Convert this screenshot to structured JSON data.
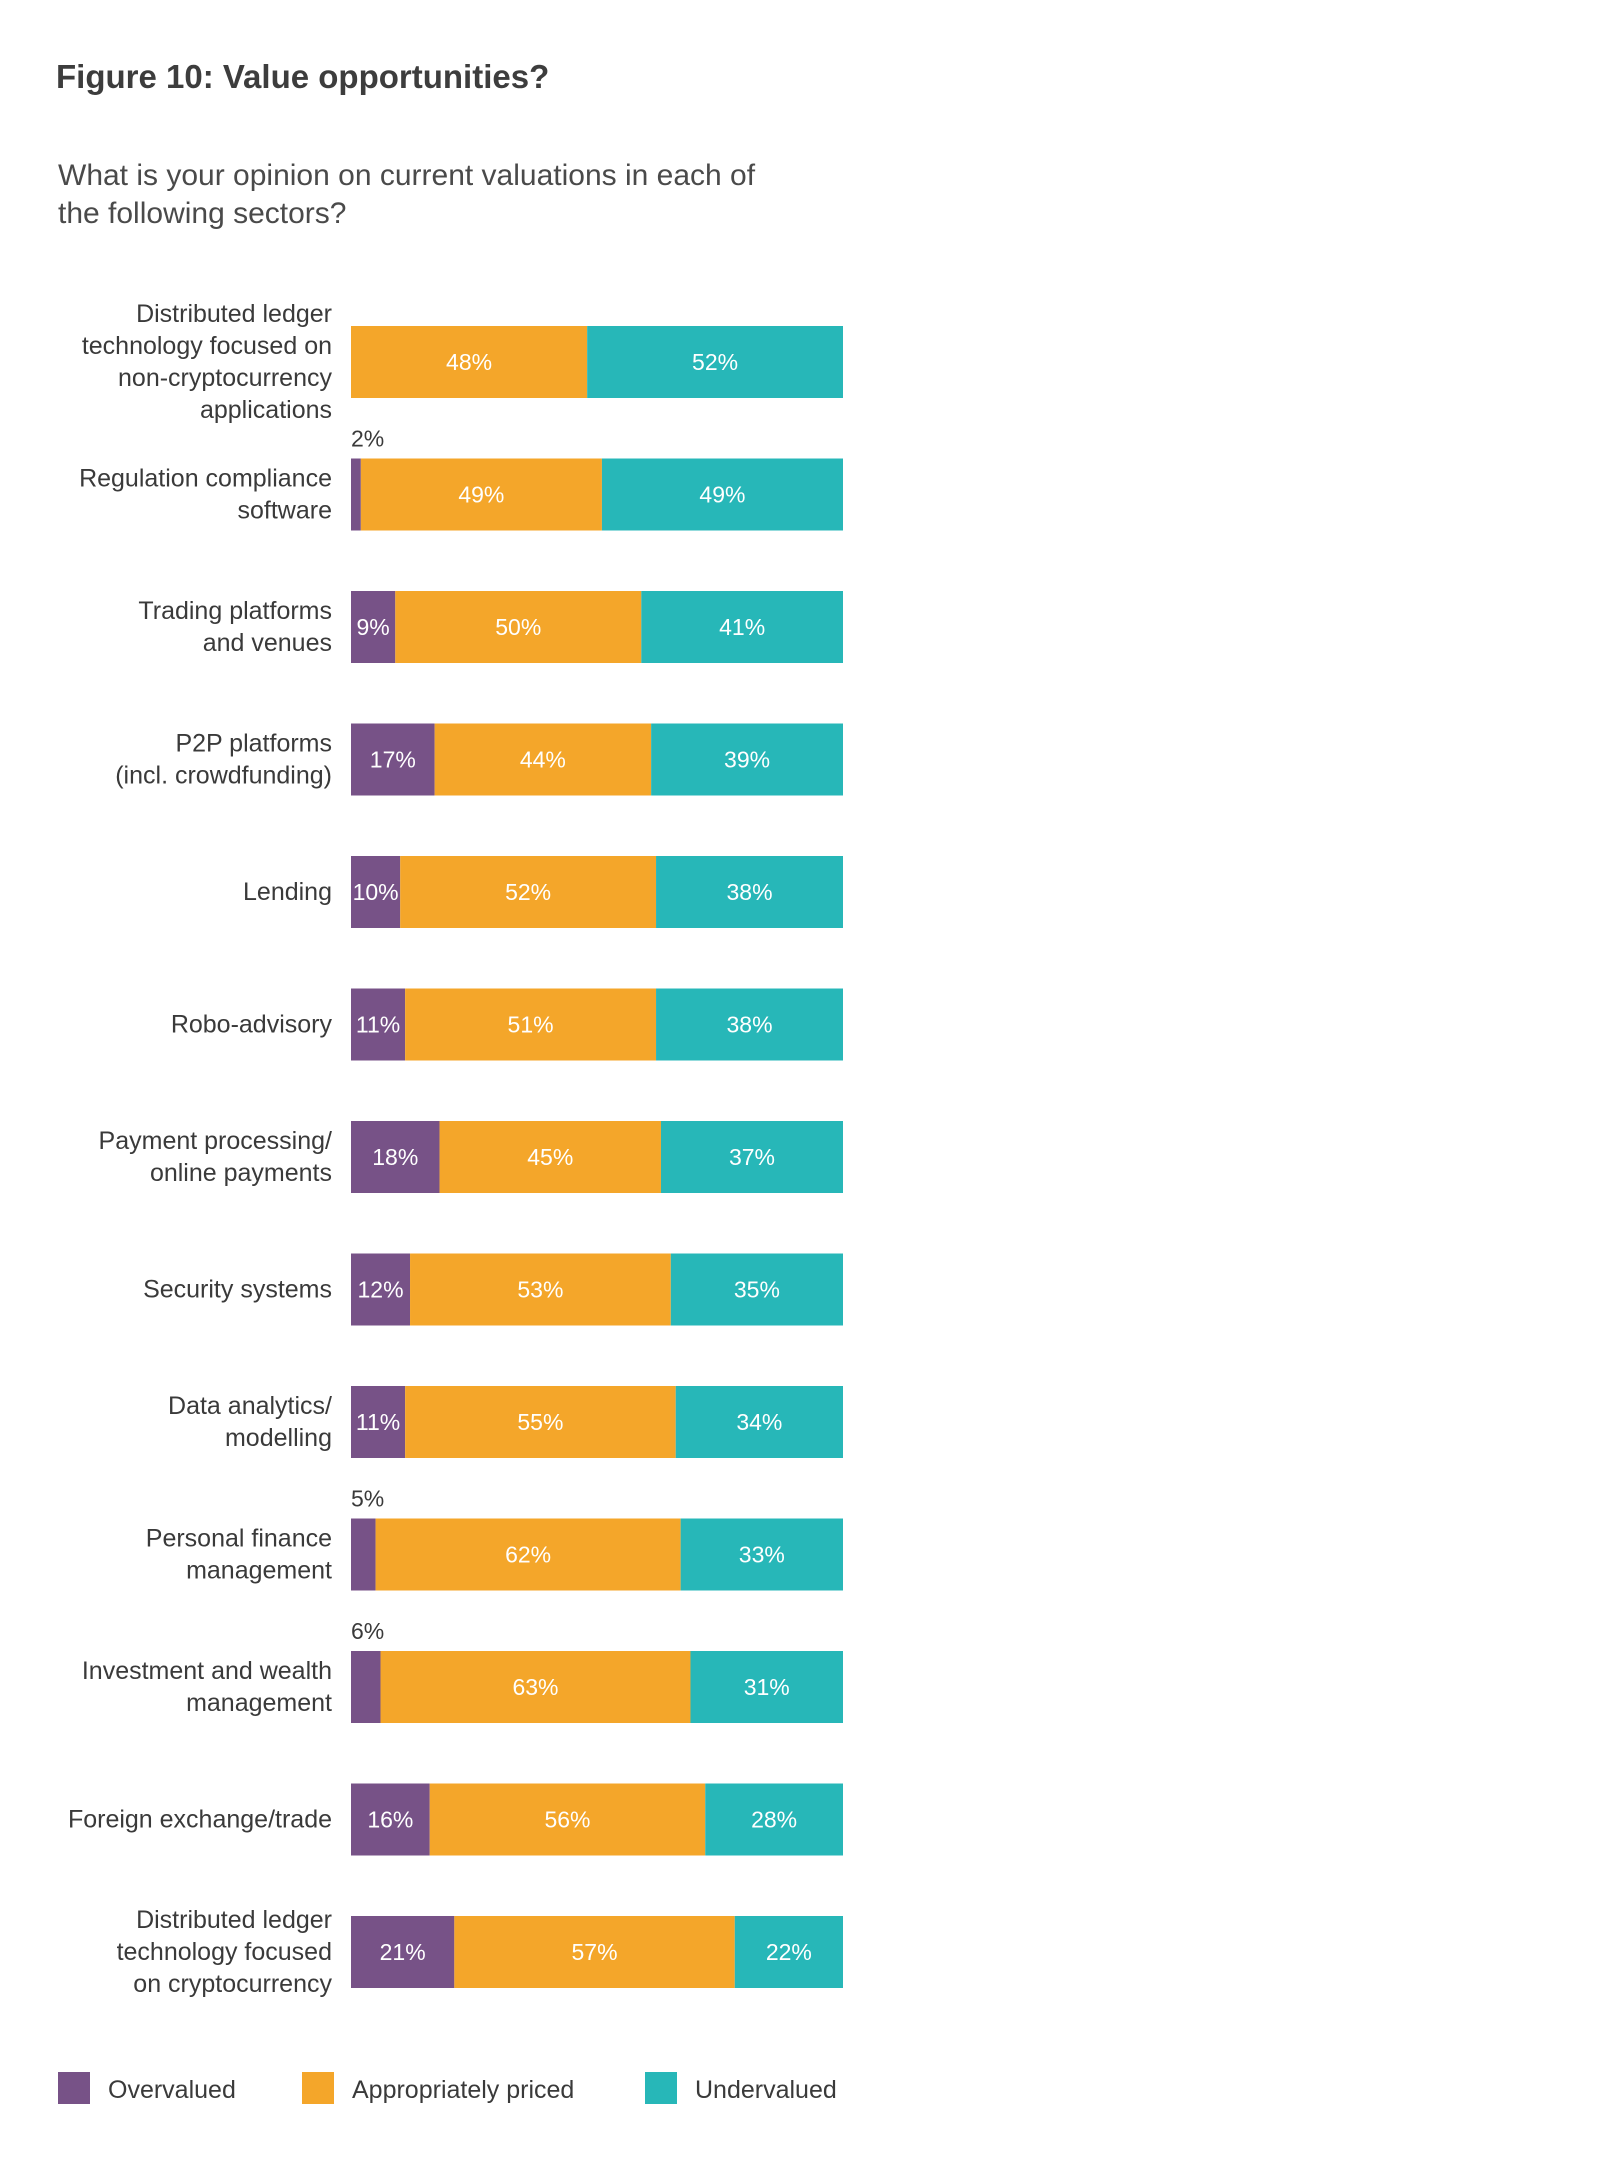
{
  "chart_data": {
    "type": "bar",
    "orientation": "horizontal",
    "stacked": true,
    "title": "Figure 10: Value opportunities?",
    "subtitle": "What is your opinion on current valuations in each of the following sectors?",
    "categories": [
      "Distributed ledger technology focused on non-cryptocurrency applications",
      "Regulation compliance software",
      "Trading platforms and venues",
      "P2P platforms (incl. crowdfunding)",
      "Lending",
      "Robo-advisory",
      "Payment processing/ online payments",
      "Security systems",
      "Data analytics/ modelling",
      "Personal finance management",
      "Investment and wealth management",
      "Foreign exchange/trade",
      "Distributed ledger technology focused on cryptocurrency"
    ],
    "category_lines": [
      [
        "Distributed ledger",
        "technology focused on",
        "non-cryptocurrency",
        "applications"
      ],
      [
        "Regulation compliance",
        "software"
      ],
      [
        "Trading platforms",
        "and venues"
      ],
      [
        "P2P platforms",
        "(incl. crowdfunding)"
      ],
      [
        "Lending"
      ],
      [
        "Robo-advisory"
      ],
      [
        "Payment processing/",
        "online payments"
      ],
      [
        "Security systems"
      ],
      [
        "Data analytics/",
        "modelling"
      ],
      [
        "Personal finance",
        "management"
      ],
      [
        "Investment and wealth",
        "management"
      ],
      [
        "Foreign exchange/trade"
      ],
      [
        "Distributed ledger",
        "technology focused",
        "on cryptocurrency"
      ]
    ],
    "series": [
      {
        "name": "Overvalued",
        "color": "#775287",
        "values": [
          0,
          2,
          9,
          17,
          10,
          11,
          18,
          12,
          11,
          5,
          6,
          16,
          21
        ]
      },
      {
        "name": "Appropriately priced",
        "color": "#f4a62a",
        "values": [
          48,
          49,
          50,
          44,
          52,
          51,
          45,
          53,
          55,
          62,
          63,
          56,
          57
        ]
      },
      {
        "name": "Undervalued",
        "color": "#27b7b8",
        "values": [
          52,
          49,
          41,
          39,
          38,
          38,
          37,
          35,
          34,
          33,
          31,
          28,
          22
        ]
      }
    ],
    "value_suffix": "%",
    "xlim": [
      0,
      100
    ],
    "legend": "bottom",
    "grid": false
  }
}
